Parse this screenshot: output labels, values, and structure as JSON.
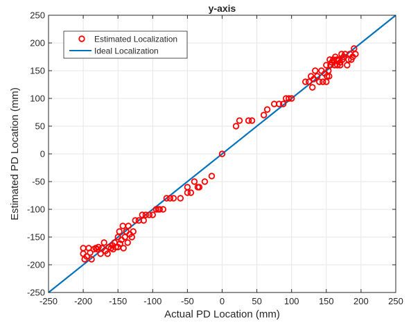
{
  "chart_data": {
    "type": "scatter",
    "title": "y-axis",
    "xlabel": "Actual PD Location (mm)",
    "ylabel": "Estimated PD Location (mm)",
    "xlim": [
      -250,
      250
    ],
    "ylim": [
      -250,
      250
    ],
    "xticks": [
      "-250",
      "-200",
      "-150",
      "-100",
      "-50",
      "0",
      "50",
      "100",
      "150",
      "200",
      "250"
    ],
    "yticks": [
      "-250",
      "-200",
      "-150",
      "-100",
      "-50",
      "0",
      "50",
      "100",
      "150",
      "200",
      "250"
    ],
    "grid": true,
    "legend_position": "top-left",
    "series": [
      {
        "name": "Estimated Localization",
        "kind": "markers",
        "color": "#ff0000",
        "marker": "circle",
        "points": [
          [
            -200,
            -170
          ],
          [
            -200,
            -180
          ],
          [
            -198,
            -190
          ],
          [
            -195,
            -185
          ],
          [
            -192,
            -170
          ],
          [
            -190,
            -178
          ],
          [
            -188,
            -190
          ],
          [
            -185,
            -172
          ],
          [
            -182,
            -170
          ],
          [
            -180,
            -172
          ],
          [
            -178,
            -168
          ],
          [
            -175,
            -180
          ],
          [
            -173,
            -170
          ],
          [
            -170,
            -160
          ],
          [
            -168,
            -175
          ],
          [
            -165,
            -180
          ],
          [
            -163,
            -168
          ],
          [
            -160,
            -170
          ],
          [
            -158,
            -165
          ],
          [
            -157,
            -172
          ],
          [
            -155,
            -160
          ],
          [
            -153,
            -168
          ],
          [
            -150,
            -168
          ],
          [
            -150,
            -150
          ],
          [
            -148,
            -140
          ],
          [
            -147,
            -162
          ],
          [
            -145,
            -155
          ],
          [
            -143,
            -130
          ],
          [
            -142,
            -170
          ],
          [
            -140,
            -150
          ],
          [
            -138,
            -140
          ],
          [
            -136,
            -160
          ],
          [
            -135,
            -130
          ],
          [
            -133,
            -145
          ],
          [
            -130,
            -150
          ],
          [
            -128,
            -140
          ],
          [
            -125,
            -120
          ],
          [
            -120,
            -120
          ],
          [
            -115,
            -110
          ],
          [
            -113,
            -120
          ],
          [
            -110,
            -110
          ],
          [
            -105,
            -110
          ],
          [
            -100,
            -110
          ],
          [
            -95,
            -100
          ],
          [
            -92,
            -100
          ],
          [
            -90,
            -100
          ],
          [
            -85,
            -100
          ],
          [
            -80,
            -80
          ],
          [
            -75,
            -80
          ],
          [
            -70,
            -80
          ],
          [
            -60,
            -80
          ],
          [
            -50,
            -60
          ],
          [
            -50,
            -70
          ],
          [
            -45,
            -70
          ],
          [
            -40,
            -50
          ],
          [
            -35,
            -60
          ],
          [
            -33,
            -60
          ],
          [
            -25,
            -50
          ],
          [
            -15,
            -40
          ],
          [
            0,
            0
          ],
          [
            20,
            50
          ],
          [
            25,
            60
          ],
          [
            38,
            60
          ],
          [
            43,
            60
          ],
          [
            60,
            70
          ],
          [
            65,
            80
          ],
          [
            75,
            90
          ],
          [
            82,
            90
          ],
          [
            88,
            90
          ],
          [
            92,
            100
          ],
          [
            96,
            100
          ],
          [
            100,
            100
          ],
          [
            120,
            130
          ],
          [
            125,
            130
          ],
          [
            128,
            140
          ],
          [
            130,
            120
          ],
          [
            132,
            135
          ],
          [
            134,
            150
          ],
          [
            137,
            140
          ],
          [
            140,
            130
          ],
          [
            143,
            150
          ],
          [
            145,
            130
          ],
          [
            148,
            145
          ],
          [
            150,
            160
          ],
          [
            151,
            140
          ],
          [
            153,
            150
          ],
          [
            155,
            170
          ],
          [
            156,
            160
          ],
          [
            158,
            165
          ],
          [
            160,
            170
          ],
          [
            162,
            160
          ],
          [
            163,
            175
          ],
          [
            165,
            170
          ],
          [
            166,
            160
          ],
          [
            168,
            170
          ],
          [
            170,
            165
          ],
          [
            172,
            180
          ],
          [
            173,
            170
          ],
          [
            175,
            175
          ],
          [
            177,
            180
          ],
          [
            180,
            160
          ],
          [
            182,
            170
          ],
          [
            184,
            180
          ],
          [
            186,
            170
          ],
          [
            188,
            175
          ],
          [
            190,
            190
          ],
          [
            192,
            180
          ],
          [
            170,
            160
          ],
          [
            150,
            130
          ],
          [
            154,
            140
          ]
        ]
      },
      {
        "name": "Ideal Localization",
        "kind": "line",
        "color": "#0072bd",
        "points": [
          [
            -250,
            -250
          ],
          [
            250,
            250
          ]
        ]
      }
    ]
  }
}
